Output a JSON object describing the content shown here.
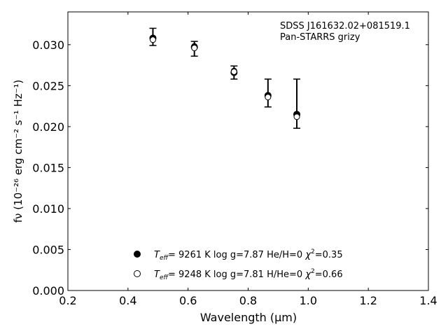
{
  "chart_data": {
    "type": "scatter",
    "annotation": {
      "line1": "SDSS J161632.02+081519.1",
      "line2": "Pan-STARRS grizy"
    },
    "xlabel": "Wavelength (μm)",
    "ylabel": "fν (10⁻²⁶ erg cm⁻² s⁻¹ Hz⁻¹)",
    "xlim": [
      0.2,
      1.4
    ],
    "ylim": [
      0.0,
      0.034
    ],
    "x_ticks": [
      0.2,
      0.4,
      0.6,
      0.8,
      1.0,
      1.2,
      1.4
    ],
    "x_tick_labels": [
      "0.2",
      "0.4",
      "0.6",
      "0.8",
      "1.0",
      "1.2",
      "1.4"
    ],
    "y_ticks": [
      0.0,
      0.005,
      0.01,
      0.015,
      0.02,
      0.025,
      0.03
    ],
    "y_tick_labels": [
      "0.000",
      "0.005",
      "0.010",
      "0.015",
      "0.020",
      "0.025",
      "0.030"
    ],
    "grid": false,
    "observed": {
      "x": [
        0.483,
        0.621,
        0.753,
        0.866,
        0.962
      ],
      "y": [
        0.0308,
        0.0297,
        0.0266,
        0.0238,
        0.0215
      ],
      "err_low": [
        0.0299,
        0.0286,
        0.0258,
        0.0224,
        0.0198
      ],
      "err_high": [
        0.032,
        0.0304,
        0.0274,
        0.0258,
        0.0258
      ],
      "marker": "filled-circle"
    },
    "series": [
      {
        "marker": "filled-circle",
        "x": [
          0.483,
          0.621,
          0.753,
          0.866,
          0.962
        ],
        "y": [
          0.0307,
          0.0298,
          0.0268,
          0.0237,
          0.0214
        ],
        "legend": {
          "teff_symbol": "T",
          "teff_sub": "eff",
          "teff_value": "=  9261 K",
          "logg": "log g=7.87",
          "comp": "He/H=0",
          "chi_symbol": "χ",
          "chi_sup": "2",
          "chi_value": "=0.35"
        }
      },
      {
        "marker": "open-circle",
        "x": [
          0.483,
          0.621,
          0.753,
          0.866,
          0.962
        ],
        "y": [
          0.0306,
          0.0296,
          0.0267,
          0.0236,
          0.0212
        ],
        "legend": {
          "teff_symbol": "T",
          "teff_sub": "eff",
          "teff_value": "=  9248 K",
          "logg": "log g=7.81",
          "comp": "H/He=0",
          "chi_symbol": "χ",
          "chi_sup": "2",
          "chi_value": "=0.66"
        }
      }
    ],
    "legend_position": "lower-center",
    "colors": {
      "marker": "#000000",
      "axes": "#000000"
    }
  }
}
